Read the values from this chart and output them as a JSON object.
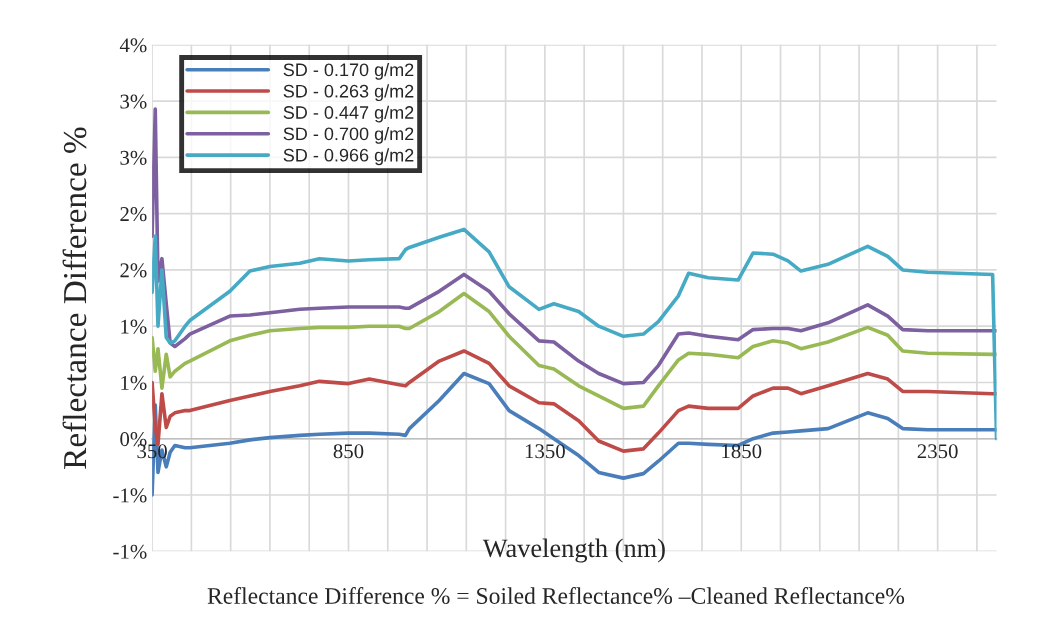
{
  "chart_data": {
    "type": "line",
    "xlabel": "Wavelength (nm)",
    "ylabel": "Reflectance Difference %",
    "annotations": [
      "Reflectance Difference % = Soiled Reflectance% –Cleaned Reflectance%"
    ],
    "x": [
      350,
      358,
      365,
      375,
      386,
      396,
      408,
      434,
      446,
      548,
      599,
      650,
      726,
      776,
      850,
      903,
      979,
      995,
      1005,
      1081,
      1144,
      1208,
      1259,
      1335,
      1373,
      1436,
      1487,
      1550,
      1601,
      1639,
      1690,
      1716,
      1766,
      1842,
      1880,
      1931,
      1969,
      2002,
      2071,
      2172,
      2223,
      2261,
      2325,
      2490,
      2500
    ],
    "series": [
      {
        "name": "SD - 0.170 g/m2",
        "color": "#4a7ebb",
        "values": [
          -0.5,
          0.3,
          -0.3,
          -0.1,
          -0.25,
          -0.12,
          -0.06,
          -0.08,
          -0.08,
          -0.04,
          -0.01,
          0.01,
          0.03,
          0.04,
          0.05,
          0.05,
          0.04,
          0.03,
          0.09,
          0.34,
          0.58,
          0.49,
          0.25,
          0.09,
          0.0,
          -0.15,
          -0.3,
          -0.35,
          -0.31,
          -0.2,
          -0.04,
          -0.04,
          -0.05,
          -0.06,
          0.0,
          0.05,
          0.06,
          0.07,
          0.09,
          0.23,
          0.18,
          0.09,
          0.08,
          0.08,
          0.08
        ]
      },
      {
        "name": "SD - 0.263 g/m2",
        "color": "#be4b48",
        "values": [
          0.5,
          0.1,
          -0.05,
          0.4,
          0.1,
          0.2,
          0.23,
          0.25,
          0.25,
          0.34,
          0.38,
          0.42,
          0.47,
          0.51,
          0.49,
          0.53,
          0.48,
          0.47,
          0.5,
          0.69,
          0.78,
          0.67,
          0.47,
          0.32,
          0.31,
          0.16,
          -0.02,
          -0.11,
          -0.09,
          0.05,
          0.25,
          0.29,
          0.27,
          0.27,
          0.38,
          0.45,
          0.45,
          0.4,
          0.47,
          0.58,
          0.53,
          0.42,
          0.42,
          0.4,
          0.4
        ]
      },
      {
        "name": "SD - 0.447 g/m2",
        "color": "#98b954",
        "values": [
          0.9,
          0.6,
          0.8,
          0.45,
          0.75,
          0.55,
          0.6,
          0.67,
          0.69,
          0.87,
          0.92,
          0.96,
          0.98,
          0.99,
          0.99,
          1.0,
          1.0,
          0.98,
          0.98,
          1.13,
          1.29,
          1.13,
          0.91,
          0.65,
          0.62,
          0.47,
          0.38,
          0.27,
          0.29,
          0.47,
          0.7,
          0.76,
          0.75,
          0.72,
          0.82,
          0.87,
          0.85,
          0.8,
          0.86,
          0.99,
          0.92,
          0.78,
          0.76,
          0.75,
          0.75
        ]
      },
      {
        "name": "SD - 0.700 g/m2",
        "color": "#7d60a0",
        "values": [
          1.8,
          2.93,
          1.4,
          1.6,
          1.2,
          0.85,
          0.82,
          0.89,
          0.93,
          1.09,
          1.1,
          1.12,
          1.15,
          1.16,
          1.17,
          1.17,
          1.17,
          1.16,
          1.16,
          1.31,
          1.46,
          1.31,
          1.11,
          0.87,
          0.86,
          0.69,
          0.58,
          0.49,
          0.5,
          0.65,
          0.93,
          0.94,
          0.91,
          0.88,
          0.97,
          0.98,
          0.98,
          0.96,
          1.03,
          1.19,
          1.09,
          0.97,
          0.96,
          0.96,
          0.96
        ]
      },
      {
        "name": "SD - 0.966 g/m2",
        "color": "#46aac5",
        "values": [
          1.3,
          1.8,
          1.0,
          1.5,
          0.9,
          0.85,
          0.87,
          1.0,
          1.05,
          1.31,
          1.49,
          1.53,
          1.56,
          1.6,
          1.58,
          1.59,
          1.6,
          1.68,
          1.7,
          1.79,
          1.86,
          1.66,
          1.35,
          1.15,
          1.2,
          1.13,
          1.0,
          0.91,
          0.93,
          1.04,
          1.27,
          1.47,
          1.43,
          1.41,
          1.65,
          1.64,
          1.58,
          1.49,
          1.55,
          1.71,
          1.62,
          1.5,
          1.48,
          1.46,
          0
        ]
      }
    ],
    "xlim": [
      350,
      2500
    ],
    "xticks": [
      350,
      {
        "value": 450,
        "label": null
      },
      {
        "value": 550,
        "label": null
      },
      {
        "value": 650,
        "label": null
      },
      {
        "value": 750,
        "label": null
      },
      850,
      {
        "value": 950,
        "label": null
      },
      {
        "value": 1050,
        "label": null
      },
      {
        "value": 1150,
        "label": null
      },
      {
        "value": 1250,
        "label": null
      },
      1350,
      {
        "value": 1450,
        "label": null
      },
      {
        "value": 1550,
        "label": null
      },
      {
        "value": 1650,
        "label": null
      },
      {
        "value": 1750,
        "label": null
      },
      1850,
      {
        "value": 1950,
        "label": null
      },
      {
        "value": 2050,
        "label": null
      },
      {
        "value": 2150,
        "label": null
      },
      {
        "value": 2250,
        "label": null
      },
      2350,
      {
        "value": 2450,
        "label": null
      }
    ],
    "ylim": [
      -1,
      3.5
    ],
    "yticks": [
      {
        "value": -1,
        "label": "-1%"
      },
      {
        "value": -0.5,
        "label": "-1%"
      },
      {
        "value": 0,
        "label": "0%"
      },
      {
        "value": 0.5,
        "label": "1%"
      },
      {
        "value": 1,
        "label": "1%"
      },
      {
        "value": 1.5,
        "label": "2%"
      },
      {
        "value": 2,
        "label": "2%"
      },
      {
        "value": 2.5,
        "label": "3%"
      },
      {
        "value": 3,
        "label": "3%"
      },
      {
        "value": 3.5,
        "label": "4%"
      }
    ],
    "grid": true,
    "legend": "top left",
    "marker": "none",
    "line_style": "solid"
  }
}
